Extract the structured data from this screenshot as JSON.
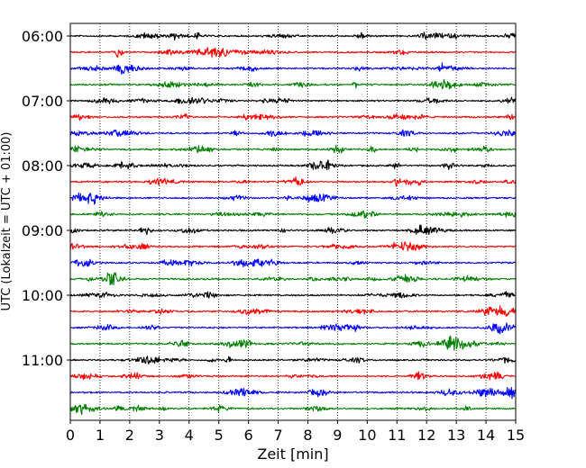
{
  "chart_data": {
    "type": "line",
    "title": "",
    "xlabel": "Zeit  [min]",
    "ylabel": "UTC (Lokalzeit = UTC + 01:00)",
    "xlim": [
      0,
      15
    ],
    "x_ticks": [
      "0",
      "1",
      "2",
      "3",
      "4",
      "5",
      "6",
      "7",
      "8",
      "9",
      "10",
      "11",
      "12",
      "13",
      "14",
      "15"
    ],
    "x_grid": "dotted vertical lines at each minute",
    "y_ticks": [
      {
        "label": "06:00",
        "trace_index": 0
      },
      {
        "label": "07:00",
        "trace_index": 4
      },
      {
        "label": "08:00",
        "trace_index": 8
      },
      {
        "label": "09:00",
        "trace_index": 12
      },
      {
        "label": "10:00",
        "trace_index": 16
      },
      {
        "label": "11:00",
        "trace_index": 20
      }
    ],
    "trace_colors": [
      "#000000",
      "#ff0000",
      "#0000ff",
      "#008000"
    ],
    "traces": [
      {
        "start": "06:00",
        "color": "#000000"
      },
      {
        "start": "06:15",
        "color": "#ff0000"
      },
      {
        "start": "06:30",
        "color": "#0000ff"
      },
      {
        "start": "06:45",
        "color": "#008000"
      },
      {
        "start": "07:00",
        "color": "#000000"
      },
      {
        "start": "07:15",
        "color": "#ff0000"
      },
      {
        "start": "07:30",
        "color": "#0000ff"
      },
      {
        "start": "07:45",
        "color": "#008000"
      },
      {
        "start": "08:00",
        "color": "#000000"
      },
      {
        "start": "08:15",
        "color": "#ff0000"
      },
      {
        "start": "08:30",
        "color": "#0000ff"
      },
      {
        "start": "08:45",
        "color": "#008000"
      },
      {
        "start": "09:00",
        "color": "#000000"
      },
      {
        "start": "09:15",
        "color": "#ff0000"
      },
      {
        "start": "09:30",
        "color": "#0000ff"
      },
      {
        "start": "09:45",
        "color": "#008000"
      },
      {
        "start": "10:00",
        "color": "#000000"
      },
      {
        "start": "10:15",
        "color": "#ff0000"
      },
      {
        "start": "10:30",
        "color": "#0000ff"
      },
      {
        "start": "10:45",
        "color": "#008000"
      },
      {
        "start": "11:00",
        "color": "#000000"
      },
      {
        "start": "11:15",
        "color": "#ff0000"
      },
      {
        "start": "11:30",
        "color": "#0000ff"
      },
      {
        "start": "11:45",
        "color": "#008000"
      }
    ]
  }
}
